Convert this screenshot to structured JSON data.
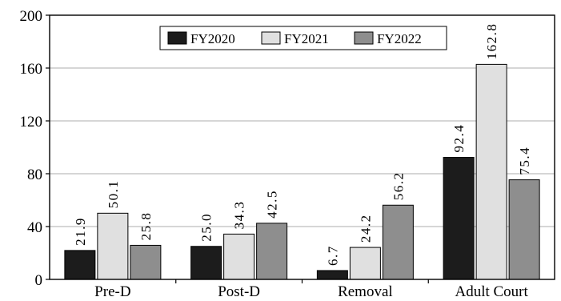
{
  "chart_data": {
    "type": "bar",
    "title": "",
    "xlabel": "",
    "ylabel": "",
    "categories": [
      "Pre-D",
      "Post-D",
      "Removal",
      "Adult Court"
    ],
    "series": [
      {
        "name": "FY2020",
        "color": "#1c1c1c",
        "values": [
          21.9,
          25.0,
          6.7,
          92.4
        ],
        "labels": [
          "21.9",
          "25.0",
          "6.7",
          "92.4"
        ]
      },
      {
        "name": "FY2021",
        "color": "#e0e0e0",
        "values": [
          50.1,
          34.3,
          24.2,
          162.8
        ],
        "labels": [
          "50.1",
          "34.3",
          "24.2",
          "162.8"
        ]
      },
      {
        "name": "FY2022",
        "color": "#8e8e8e",
        "values": [
          25.8,
          42.5,
          56.2,
          75.4
        ],
        "labels": [
          "25.8",
          "42.5",
          "56.2",
          "75.4"
        ]
      }
    ],
    "ylim": [
      0,
      200
    ],
    "yticks": [
      "0",
      "40",
      "80",
      "120",
      "160",
      "200"
    ],
    "grid": true,
    "legend_position": "top-center"
  }
}
